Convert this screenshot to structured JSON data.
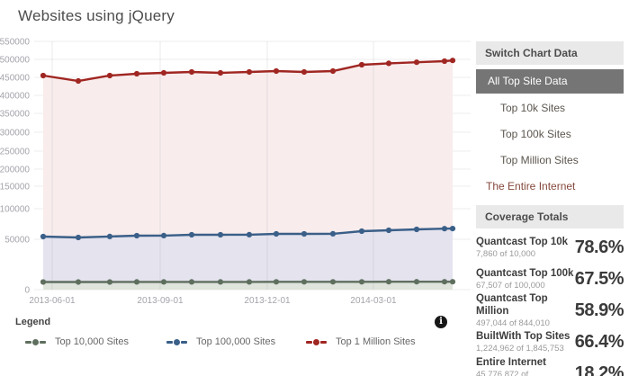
{
  "title": "Websites using jQuery",
  "chart_data": {
    "type": "line",
    "title": "Websites using jQuery",
    "x_tick_labels": [
      "2013-06-01",
      "2013-09-01",
      "2013-12-01",
      "2014-03-01"
    ],
    "y_tick_labels": [
      "550000",
      "500000",
      "450000",
      "400000",
      "350000",
      "300000",
      "250000",
      "200000",
      "150000",
      "100000",
      "50000",
      "0"
    ],
    "ylim": [
      0,
      550000
    ],
    "x_range_note": "16 unlabeled time points spanning mid-2013 to mid-2014",
    "grid": true,
    "legend_position": "bottom",
    "series": [
      {
        "name": "Top 10,000 Sites",
        "color": "#5f6f5f",
        "fill": "#dfe4dc",
        "values": [
          7600,
          7550,
          7600,
          7650,
          7650,
          7700,
          7700,
          7700,
          7750,
          7750,
          7750,
          7800,
          7820,
          7840,
          7860,
          7860
        ]
      },
      {
        "name": "Top 100,000 Sites",
        "color": "#3a5f88",
        "fill": "#e4e3ee",
        "values": [
          54400,
          53000,
          54500,
          55900,
          56000,
          57300,
          57400,
          57500,
          58800,
          58800,
          59000,
          63200,
          64700,
          66200,
          67400,
          67507
        ]
      },
      {
        "name": "Top 1 Million Sites",
        "color": "#a02622",
        "fill": "#f8ecec",
        "values": [
          455000,
          440000,
          455000,
          460000,
          462500,
          465000,
          462500,
          465000,
          467500,
          465000,
          467500,
          485000,
          489000,
          492000,
          495000,
          497044
        ]
      }
    ]
  },
  "legend": {
    "heading": "Legend",
    "info_icon": "i"
  },
  "sidebar": {
    "switch_header": "Switch Chart Data",
    "items": [
      {
        "label": "All Top Site Data",
        "selected": true,
        "indent": false
      },
      {
        "label": "Top 10k Sites",
        "selected": false,
        "indent": true
      },
      {
        "label": "Top 100k Sites",
        "selected": false,
        "indent": true
      },
      {
        "label": "Top Million Sites",
        "selected": false,
        "indent": true
      },
      {
        "label": "The Entire Internet",
        "selected": false,
        "indent": false
      }
    ]
  },
  "coverage": {
    "header": "Coverage Totals",
    "rows": [
      {
        "name": "Quantcast Top 10k",
        "detail": "7,860 of 10,000",
        "percent": "78.6%"
      },
      {
        "name": "Quantcast Top 100k",
        "detail": "67,507 of 100,000",
        "percent": "67.5%"
      },
      {
        "name": "Quantcast Top Million",
        "detail": "497,044 of 844,010",
        "percent": "58.9%"
      },
      {
        "name": "BuiltWith Top Sites",
        "detail": "1,224,962 of 1,845,753",
        "percent": "66.4%"
      },
      {
        "name": "Entire Internet",
        "detail": "45,776,872 of 252,162,237",
        "percent": "18.2%"
      }
    ]
  },
  "colors": {
    "title_text": "#4d4d4d",
    "axis_text": "#a4a4ac",
    "gridline": "#ededed",
    "panel_header_bg": "#e9e9e9",
    "selected_item_bg": "#757575",
    "selected_item_text": "#ffffff",
    "entire_internet_link": "#84473b",
    "menu_link": "#5c564f"
  }
}
